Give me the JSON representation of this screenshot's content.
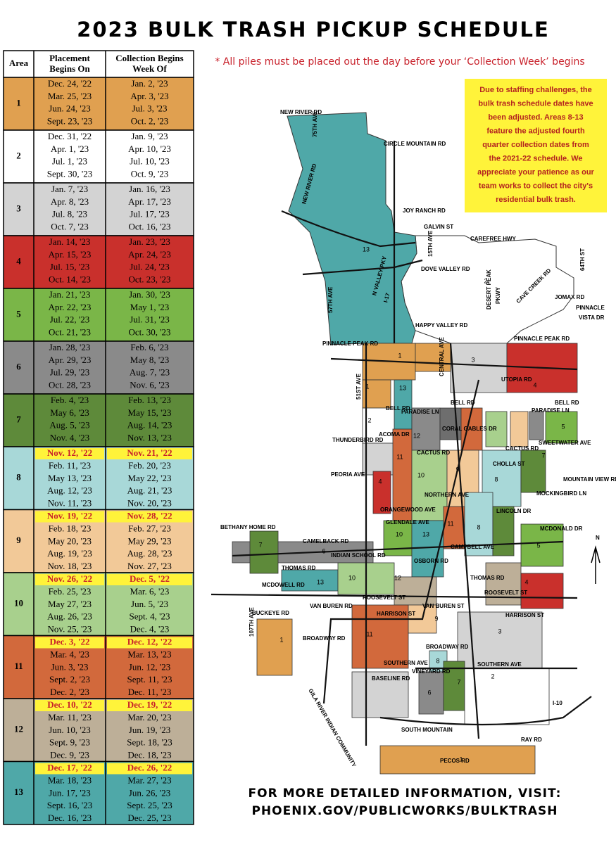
{
  "title": "2023 BULK TRASH PICKUP SCHEDULE",
  "note": "* All piles must be placed out the day before your ‘Collection Week’ begins",
  "table": {
    "header": [
      "Area",
      [
        "Placement",
        "Begins On"
      ],
      [
        "Collection Begins",
        "Week Of"
      ]
    ],
    "rows": [
      {
        "area": "1",
        "color": "#e0a050",
        "dates": [
          [
            "Dec. 24, '22",
            "Jan. 2, '23"
          ],
          [
            "Mar. 25, '23",
            "Apr. 3, '23"
          ],
          [
            "Jun. 24, '23",
            "Jul. 3, '23"
          ],
          [
            "Sept. 23, '23",
            "Oct. 2, '23"
          ]
        ]
      },
      {
        "area": "2",
        "color": "#ffffff",
        "dates": [
          [
            "Dec. 31, '22",
            "Jan. 9, '23"
          ],
          [
            "Apr. 1, '23",
            "Apr. 10, '23"
          ],
          [
            "Jul. 1, '23",
            "Jul. 10, '23"
          ],
          [
            "Sept. 30, '23",
            "Oct. 9, '23"
          ]
        ]
      },
      {
        "area": "3",
        "color": "#d3d3d3",
        "dates": [
          [
            "Jan. 7, '23",
            "Jan. 16, '23"
          ],
          [
            "Apr. 8, '23",
            "Apr. 17, '23"
          ],
          [
            "Jul. 8, '23",
            "Jul. 17, '23"
          ],
          [
            "Oct. 7, '23",
            "Oct. 16, '23"
          ]
        ]
      },
      {
        "area": "4",
        "color": "#c9302c",
        "dates": [
          [
            "Jan. 14, '23",
            "Jan. 23, '23"
          ],
          [
            "Apr. 15, '23",
            "Apr. 24, '23"
          ],
          [
            "Jul. 15, '23",
            "Jul. 24, '23"
          ],
          [
            "Oct. 14, '23",
            "Oct. 23, '23"
          ]
        ]
      },
      {
        "area": "5",
        "color": "#7ab648",
        "dates": [
          [
            "Jan. 21, '23",
            "Jan. 30, '23"
          ],
          [
            "Apr. 22, '23",
            "May 1, '23"
          ],
          [
            "Jul. 22, '23",
            "Jul. 31, '23"
          ],
          [
            "Oct. 21, '23",
            "Oct. 30, '23"
          ]
        ]
      },
      {
        "area": "6",
        "color": "#8a8a8a",
        "dates": [
          [
            "Jan. 28, '23",
            "Feb. 6, '23"
          ],
          [
            "Apr. 29, '23",
            "May 8, '23"
          ],
          [
            "Jul. 29, '23",
            "Aug. 7, '23"
          ],
          [
            "Oct. 28, '23",
            "Nov. 6, '23"
          ]
        ]
      },
      {
        "area": "7",
        "color": "#5e8a3a",
        "dates": [
          [
            "Feb. 4, '23",
            "Feb. 13, '23"
          ],
          [
            "May 6, '23",
            "May 15, '23"
          ],
          [
            "Aug. 5, '23",
            "Aug. 14, '23"
          ],
          [
            "Nov. 4, '23",
            "Nov. 13, '23"
          ]
        ]
      },
      {
        "area": "8",
        "color": "#a8d8d8",
        "highlight": [
          "Nov. 12, '22",
          "Nov. 21, '22"
        ],
        "dates": [
          [
            "Feb. 11, '23",
            "Feb. 20, '23"
          ],
          [
            "May 13, '23",
            "May 22, '23"
          ],
          [
            "Aug. 12, '23",
            "Aug. 21, '23"
          ],
          [
            "Nov. 11, '23",
            "Nov. 20, '23"
          ]
        ]
      },
      {
        "area": "9",
        "color": "#f2c998",
        "highlight": [
          "Nov. 19, '22",
          "Nov. 28, '22"
        ],
        "dates": [
          [
            "Feb. 18, '23",
            "Feb. 27, '23"
          ],
          [
            "May 20, '23",
            "May 29, '23"
          ],
          [
            "Aug. 19, '23",
            "Aug. 28, '23"
          ],
          [
            "Nov. 18, '23",
            "Nov. 27, '23"
          ]
        ]
      },
      {
        "area": "10",
        "color": "#a8d08d",
        "highlight": [
          "Nov. 26, '22",
          "Dec. 5, '22"
        ],
        "dates": [
          [
            "Feb. 25, '23",
            "Mar. 6, '23"
          ],
          [
            "May 27, '23",
            "Jun. 5, '23"
          ],
          [
            "Aug. 26, '23",
            "Sept. 4, '23"
          ],
          [
            "Nov. 25, '23",
            "Dec. 4, '23"
          ]
        ]
      },
      {
        "area": "11",
        "color": "#d2693c",
        "highlight": [
          "Dec. 3, '22",
          "Dec. 12, '22"
        ],
        "dates": [
          [
            "Mar. 4, '23",
            "Mar. 13, '23"
          ],
          [
            "Jun. 3, '23",
            "Jun. 12, '23"
          ],
          [
            "Sept. 2, '23",
            "Sept. 11, '23"
          ],
          [
            "Dec. 2, '23",
            "Dec. 11, '23"
          ]
        ]
      },
      {
        "area": "12",
        "color": "#bdaf98",
        "highlight": [
          "Dec. 10, '22",
          "Dec. 19, '22"
        ],
        "dates": [
          [
            "Mar. 11, '23",
            "Mar. 20, '23"
          ],
          [
            "Jun. 10, '23",
            "Jun. 19, '23"
          ],
          [
            "Sept. 9, '23",
            "Sept. 18, '23"
          ],
          [
            "Dec. 9, '23",
            "Dec. 18, '23"
          ]
        ]
      },
      {
        "area": "13",
        "color": "#4fa8a8",
        "highlight": [
          "Dec. 17, '22",
          "Dec. 26, '22"
        ],
        "dates": [
          [
            "Mar. 18, '23",
            "Mar. 27, '23"
          ],
          [
            "Jun. 17, '23",
            "Jun. 26, '23"
          ],
          [
            "Sept. 16, '23",
            "Sept. 25, '23"
          ],
          [
            "Dec. 16, '23",
            "Dec. 25, '23"
          ]
        ]
      }
    ]
  },
  "notice": [
    "Due to staffing challenges, the",
    "bulk trash schedule dates have",
    "been adjusted. Areas 8-13",
    "feature the adjusted fourth",
    "quarter collection dates from",
    "the 2021-22 schedule. We",
    "appreciate your patience as our",
    "team works to collect the city's",
    "residential bulk trash."
  ],
  "map": {
    "labels": [
      "NEW RIVER RD",
      "75TH AVE",
      "NEW RIVER RD",
      "CIRCLE MOUNTAIN RD",
      "JOY RANCH RD",
      "GALVIN ST",
      "CAREFREE HWY",
      "15TH AVE",
      "DOVE VALLEY RD",
      "64TH ST",
      "JOMAX RD",
      "PINNACLE",
      "VISTA DR",
      "N VALLEY PKY",
      "57TH AVE",
      "I-17",
      "DESERT PEAK",
      "PKWY",
      "CAVE CREEK RD",
      "HAPPY VALLEY RD",
      "PINNACLE PEAK RD",
      "PINNACLE PEAK RD",
      "UTOPIA RD",
      "BELL RD",
      "BELL RD",
      "BELL RD",
      "51ST AVE",
      "CENTRAL AVE",
      "PARADISE LN",
      "PARADISE LN",
      "THUNDERBIRD RD",
      "ACOMA DR",
      "CORAL GABLES DR",
      "CACTUS RD",
      "CACTUS RD",
      "SWEETWATER AVE",
      "PEORIA AVE",
      "CHOLLA ST",
      "MOUNTAIN VIEW RD",
      "NORTHERN AVE",
      "MOCKINGBIRD LN",
      "ORANGEWOOD AVE",
      "LINCOLN DR",
      "GLENDALE AVE",
      "MCDONALD DR",
      "BETHANY HOME RD",
      "CAMELBACK RD",
      "CAMPBELL AVE",
      "INDIAN SCHOOL RD",
      "THOMAS RD",
      "THOMAS RD",
      "OSBORN RD",
      "MCDOWELL RD",
      "ROOSEVELT ST",
      "ROOSEVELT ST",
      "VAN BUREN RD",
      "VAN BUREN ST",
      "HARRISON ST",
      "HARRISON ST",
      "BUCKEYE RD",
      "BROADWAY RD",
      "BROADWAY RD",
      "SOUTHERN AVE",
      "SOUTHERN AVE",
      "VINEYARD RD",
      "BASELINE RD",
      "SOUTH MOUNTAIN",
      "RAY RD",
      "PECOS RD",
      "GILA RIVER INDIAN COMMUNITY",
      "107TH AVE",
      "I-10",
      "N"
    ],
    "areas": [
      "13",
      "2",
      "1",
      "3",
      "4",
      "1",
      "13",
      "2",
      "12",
      "11",
      "10",
      "9",
      "8",
      "5",
      "7",
      "4",
      "10",
      "13",
      "11",
      "8",
      "5",
      "7",
      "6",
      "13",
      "10",
      "12",
      "4",
      "11",
      "9",
      "3",
      "2",
      "8",
      "7",
      "6",
      "1",
      "1"
    ]
  },
  "footer": [
    "FOR MORE DETAILED INFORMATION, VISIT:",
    "PHOENIX.GOV/PUBLICWORKS/BULKTRASH"
  ]
}
